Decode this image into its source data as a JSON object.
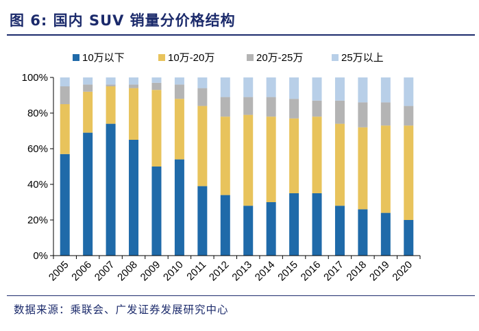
{
  "figure": {
    "title": "图 6:  国内 SUV 销量分价格结构",
    "source": "数据来源：乘联会、广发证券发展研究中心"
  },
  "chart_data": {
    "type": "bar",
    "stacked": true,
    "categories": [
      "2005",
      "2006",
      "2007",
      "2008",
      "2009",
      "2010",
      "2011",
      "2012",
      "2013",
      "2014",
      "2015",
      "2016",
      "2017",
      "2018",
      "2019",
      "2020"
    ],
    "series": [
      {
        "name": "10万以下",
        "color": "#1f6aa9",
        "values": [
          57,
          69,
          74,
          65,
          50,
          54,
          39,
          34,
          28,
          30,
          35,
          35,
          28,
          26,
          24,
          20
        ]
      },
      {
        "name": "10万-20万",
        "color": "#e8c35c",
        "values": [
          28,
          23,
          21,
          29,
          43,
          34,
          45,
          44,
          51,
          48,
          42,
          43,
          46,
          46,
          49,
          53
        ]
      },
      {
        "name": "20万-25万",
        "color": "#b4b4b4",
        "values": [
          10,
          4,
          1,
          2,
          4,
          8,
          10,
          11,
          10,
          11,
          11,
          9,
          13,
          14,
          13,
          11
        ]
      },
      {
        "name": "25万以上",
        "color": "#b8cfe8",
        "values": [
          5,
          4,
          4,
          4,
          3,
          4,
          6,
          11,
          11,
          11,
          12,
          13,
          13,
          14,
          14,
          16
        ]
      }
    ],
    "yticks": [
      "0%",
      "20%",
      "40%",
      "60%",
      "80%",
      "100%"
    ],
    "ylim": [
      0,
      100
    ],
    "legend_position": "top",
    "grid": false
  }
}
